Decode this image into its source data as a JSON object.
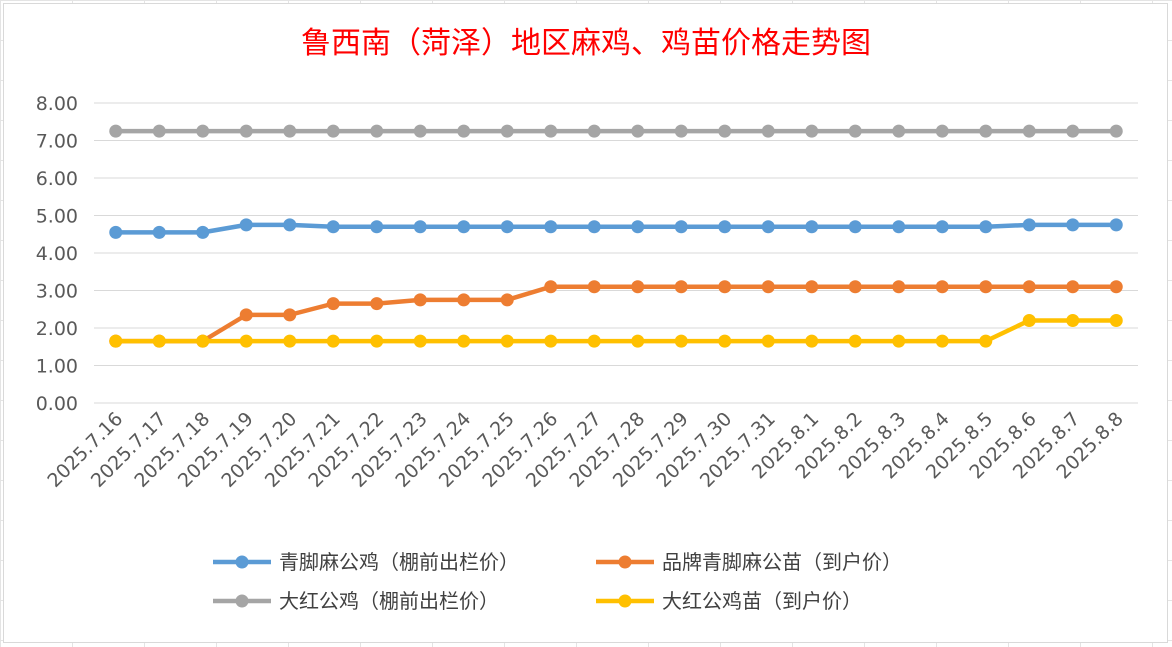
{
  "chart_data": {
    "type": "line",
    "title": "鲁西南（菏泽）地区麻鸡、鸡苗价格走势图",
    "xlabel": "",
    "ylabel": "",
    "ylim": [
      0,
      8
    ],
    "y_ticks": [
      "0.00",
      "1.00",
      "2.00",
      "3.00",
      "4.00",
      "5.00",
      "6.00",
      "7.00",
      "8.00"
    ],
    "grid": "horizontal",
    "legend_position": "bottom",
    "categories": [
      "2025.7.16",
      "2025.7.17",
      "2025.7.18",
      "2025.7.19",
      "2025.7.20",
      "2025.7.21",
      "2025.7.22",
      "2025.7.23",
      "2025.7.24",
      "2025.7.25",
      "2025.7.26",
      "2025.7.27",
      "2025.7.28",
      "2025.7.29",
      "2025.7.30",
      "2025.7.31",
      "2025.8.1",
      "2025.8.2",
      "2025.8.3",
      "2025.8.4",
      "2025.8.5",
      "2025.8.6",
      "2025.8.7",
      "2025.8.8"
    ],
    "series": [
      {
        "name": "青脚麻公鸡（棚前出栏价）",
        "color": "#5b9bd5",
        "values": [
          4.55,
          4.55,
          4.55,
          4.75,
          4.75,
          4.7,
          4.7,
          4.7,
          4.7,
          4.7,
          4.7,
          4.7,
          4.7,
          4.7,
          4.7,
          4.7,
          4.7,
          4.7,
          4.7,
          4.7,
          4.7,
          4.75,
          4.75,
          4.75
        ]
      },
      {
        "name": "品牌青脚麻公苗（到户价）",
        "color": "#ed7d31",
        "values": [
          1.65,
          1.65,
          1.65,
          2.35,
          2.35,
          2.65,
          2.65,
          2.75,
          2.75,
          2.75,
          3.1,
          3.1,
          3.1,
          3.1,
          3.1,
          3.1,
          3.1,
          3.1,
          3.1,
          3.1,
          3.1,
          3.1,
          3.1,
          3.1
        ]
      },
      {
        "name": "大红公鸡（棚前出栏价）",
        "color": "#a5a5a5",
        "values": [
          7.25,
          7.25,
          7.25,
          7.25,
          7.25,
          7.25,
          7.25,
          7.25,
          7.25,
          7.25,
          7.25,
          7.25,
          7.25,
          7.25,
          7.25,
          7.25,
          7.25,
          7.25,
          7.25,
          7.25,
          7.25,
          7.25,
          7.25,
          7.25
        ]
      },
      {
        "name": "大红公鸡苗（到户价）",
        "color": "#ffc000",
        "values": [
          1.65,
          1.65,
          1.65,
          1.65,
          1.65,
          1.65,
          1.65,
          1.65,
          1.65,
          1.65,
          1.65,
          1.65,
          1.65,
          1.65,
          1.65,
          1.65,
          1.65,
          1.65,
          1.65,
          1.65,
          1.65,
          2.2,
          2.2,
          2.2
        ]
      }
    ]
  }
}
